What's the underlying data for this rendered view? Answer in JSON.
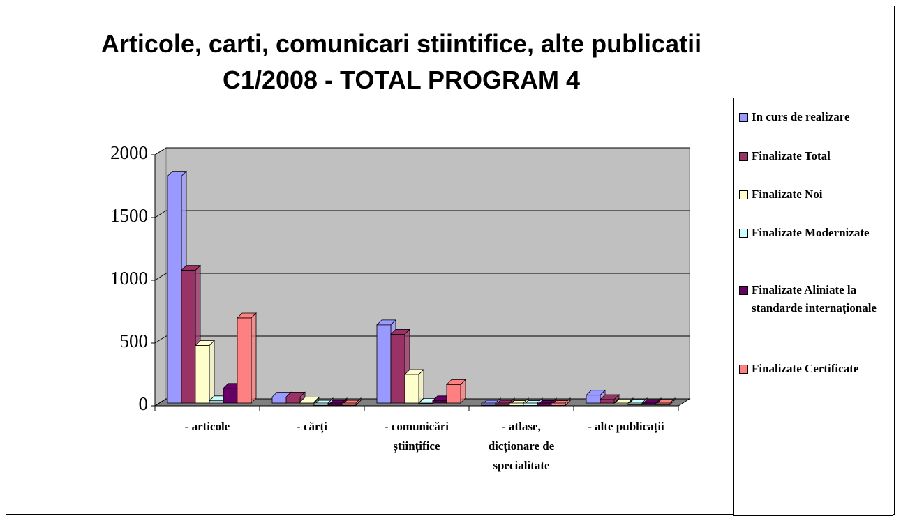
{
  "chart_data": {
    "type": "bar3d",
    "title": "Articole, carti, comunicari stiintifice, alte publicatii",
    "subtitle": "C1/2008 - TOTAL PROGRAM 4",
    "categories": [
      "- articole",
      "- cărți",
      "- comunicări științifice",
      "- atlase, dicționare de specialitate",
      "- alte publicații"
    ],
    "series": [
      {
        "name": "In curs de realizare",
        "color": "#9999ff",
        "values": [
          1830,
          70,
          645,
          5,
          85
        ]
      },
      {
        "name": "Finalizate Total",
        "color": "#993366",
        "values": [
          1080,
          70,
          570,
          5,
          50
        ]
      },
      {
        "name": "Finalizate Noi",
        "color": "#ffffcc",
        "values": [
          480,
          30,
          250,
          3,
          15
        ]
      },
      {
        "name": "Finalizate Modernizate",
        "color": "#ccffff",
        "values": [
          40,
          5,
          20,
          3,
          10
        ]
      },
      {
        "name": "Finalizate Aliniate la standarde internaționale",
        "color": "#660066",
        "values": [
          140,
          5,
          40,
          3,
          10
        ]
      },
      {
        "name": "Finalizate Certificate",
        "color": "#ff8080",
        "values": [
          700,
          5,
          170,
          3,
          10
        ]
      }
    ],
    "ylim": [
      0,
      2000
    ],
    "yticks": [
      0,
      500,
      1000,
      1500,
      2000
    ],
    "grid": true,
    "legend": "right"
  }
}
